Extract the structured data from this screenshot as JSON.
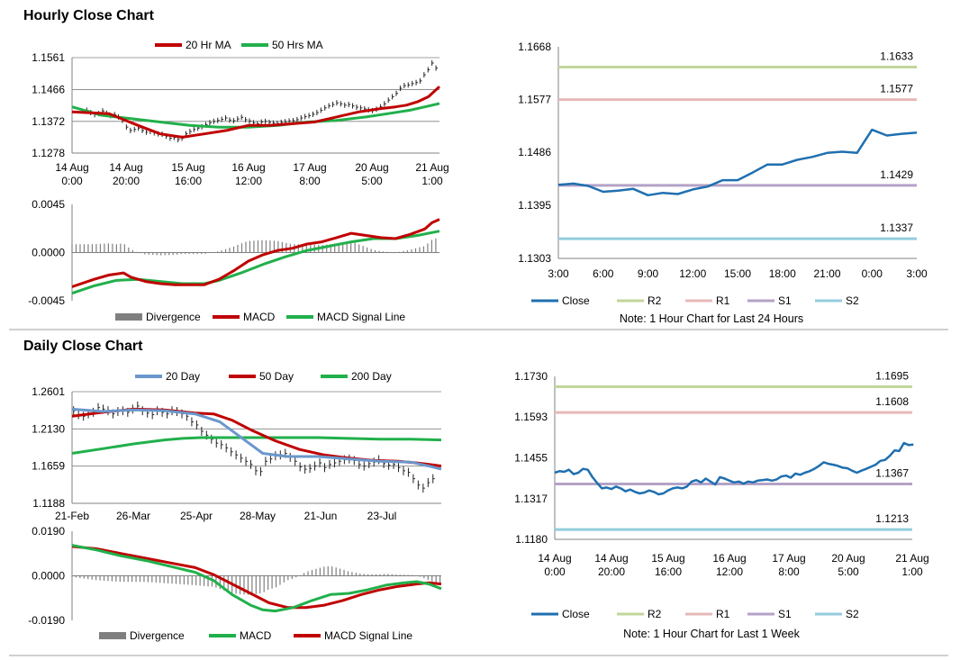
{
  "sections": {
    "hourly_title": "Hourly Close Chart",
    "daily_title": "Daily Close Chart"
  },
  "colors": {
    "close": "#1f6fb0",
    "ma_red": "#c00000",
    "ma_green": "#21b04b",
    "blue20": "#6a97cc",
    "R2": "#c3d69b",
    "R1": "#e6b9b8",
    "S1": "#b3a2c7",
    "S2": "#93cddd",
    "divergence": "#7f7f7f"
  },
  "chart_data": [
    {
      "id": "hourly_price",
      "type": "line",
      "title": "",
      "legend": [
        "20 Hr MA",
        "50 Hrs MA"
      ],
      "y_ticks": [
        "1.1561",
        "1.1466",
        "1.1372",
        "1.1278"
      ],
      "x_ticks": [
        [
          "14 Aug",
          "0:00"
        ],
        [
          "14 Aug",
          "20:00"
        ],
        [
          "15 Aug",
          "16:00"
        ],
        [
          "16 Aug",
          "12:00"
        ],
        [
          "17 Aug",
          "8:00"
        ],
        [
          "20 Aug",
          "5:00"
        ],
        [
          "21 Aug",
          "1:00"
        ]
      ],
      "ylim": [
        1.1278,
        1.1561
      ],
      "x_count": 100,
      "series": [
        {
          "name": "20 Hr MA",
          "x": [
            0,
            10,
            18,
            24,
            30,
            36,
            42,
            48,
            54,
            60,
            66,
            72,
            78,
            84,
            88,
            91,
            94,
            97,
            100
          ],
          "values": [
            1.14,
            1.1395,
            1.136,
            1.1335,
            1.1325,
            1.1335,
            1.1345,
            1.136,
            1.136,
            1.1365,
            1.137,
            1.1385,
            1.14,
            1.141,
            1.1415,
            1.142,
            1.143,
            1.1445,
            1.1475
          ]
        },
        {
          "name": "50 Hrs MA",
          "x": [
            0,
            8,
            16,
            24,
            32,
            40,
            48,
            56,
            64,
            72,
            80,
            86,
            92,
            96,
            100
          ],
          "values": [
            1.1415,
            1.139,
            1.138,
            1.137,
            1.136,
            1.1355,
            1.1355,
            1.136,
            1.137,
            1.1375,
            1.1385,
            1.1395,
            1.1405,
            1.1415,
            1.1425
          ]
        }
      ],
      "close_bars": [
        1.1405,
        1.1398,
        1.1392,
        1.1395,
        1.1403,
        1.1396,
        1.1389,
        1.1392,
        1.1385,
        1.1375,
        1.1355,
        1.1345,
        1.1348,
        1.1352,
        1.1345,
        1.134,
        1.1342,
        1.1338,
        1.1335,
        1.1334,
        1.1328,
        1.1322,
        1.1324,
        1.1318,
        1.1322,
        1.1335,
        1.1342,
        1.1348,
        1.1352,
        1.1356,
        1.1362,
        1.1368,
        1.1372,
        1.1375,
        1.1378,
        1.1382,
        1.1376,
        1.1374,
        1.1379,
        1.1384,
        1.1377,
        1.1373,
        1.1368,
        1.1365,
        1.137,
        1.1372,
        1.1369,
        1.1367,
        1.1366,
        1.1369,
        1.1371,
        1.1373,
        1.1374,
        1.1377,
        1.1382,
        1.1386,
        1.1389,
        1.1393,
        1.1398,
        1.1405,
        1.1412,
        1.1418,
        1.1422,
        1.1427,
        1.1424,
        1.142,
        1.1422,
        1.1418,
        1.1414,
        1.1412,
        1.1409,
        1.1406,
        1.1404,
        1.1408,
        1.1415,
        1.1424,
        1.1435,
        1.1445,
        1.1455,
        1.147,
        1.1478,
        1.148,
        1.1484,
        1.1487,
        1.1492,
        1.151,
        1.1525,
        1.1545,
        1.153
      ],
      "close_x_start": 4,
      "close_x_step": 1.08
    },
    {
      "id": "hourly_macd",
      "type": "line",
      "title": "",
      "legend": [
        "Divergence",
        "MACD",
        "MACD Signal Line"
      ],
      "y_ticks": [
        "0.0045",
        "0.0000",
        "-0.0045"
      ],
      "ylim": [
        -0.0045,
        0.0045
      ],
      "x_count": 100,
      "series": [
        {
          "name": "MACD",
          "x": [
            0,
            6,
            10,
            14,
            16,
            20,
            24,
            28,
            32,
            36,
            40,
            44,
            48,
            52,
            56,
            60,
            64,
            68,
            72,
            76,
            80,
            84,
            88,
            92,
            96,
            98,
            100
          ],
          "values": [
            -0.0032,
            -0.0025,
            -0.0021,
            -0.0019,
            -0.0023,
            -0.0027,
            -0.0029,
            -0.003,
            -0.003,
            -0.003,
            -0.0025,
            -0.0017,
            -0.0008,
            -0.0002,
            0.0002,
            0.0004,
            0.0008,
            0.001,
            0.0014,
            0.0018,
            0.0016,
            0.0014,
            0.0013,
            0.0017,
            0.0022,
            0.0028,
            0.0031
          ]
        },
        {
          "name": "MACD Signal Line",
          "x": [
            0,
            6,
            12,
            18,
            24,
            30,
            36,
            40,
            46,
            52,
            58,
            64,
            70,
            76,
            82,
            88,
            94,
            100
          ],
          "values": [
            -0.0038,
            -0.0031,
            -0.0026,
            -0.0025,
            -0.0027,
            -0.0029,
            -0.0029,
            -0.0026,
            -0.0019,
            -0.0011,
            -0.0004,
            0.0002,
            0.0006,
            0.001,
            0.0013,
            0.0013,
            0.0016,
            0.002
          ]
        }
      ]
    },
    {
      "id": "hourly_24h",
      "type": "line",
      "title": "",
      "y_ticks": [
        "1.1668",
        "1.1577",
        "1.1486",
        "1.1395",
        "1.1303"
      ],
      "x_ticks": [
        "3:00",
        "6:00",
        "9:00",
        "12:00",
        "15:00",
        "18:00",
        "21:00",
        "0:00",
        "3:00"
      ],
      "ylim": [
        1.1303,
        1.1668
      ],
      "x": [
        0,
        1,
        2,
        3,
        4,
        5,
        6,
        7,
        8,
        9,
        10,
        11,
        12,
        13,
        14,
        15,
        16,
        17,
        18,
        19,
        20,
        21,
        22,
        23,
        24
      ],
      "close": [
        1.143,
        1.1432,
        1.1428,
        1.1418,
        1.142,
        1.1423,
        1.1412,
        1.1416,
        1.1414,
        1.1422,
        1.1427,
        1.1438,
        1.1438,
        1.1451,
        1.1465,
        1.1465,
        1.1473,
        1.1478,
        1.1485,
        1.1487,
        1.1485,
        1.1525,
        1.1515,
        1.1518,
        1.152
      ],
      "levels": [
        {
          "name": "R2",
          "value": 1.1633,
          "label": "1.1633"
        },
        {
          "name": "R1",
          "value": 1.1577,
          "label": "1.1577"
        },
        {
          "name": "S1",
          "value": 1.1429,
          "label": "1.1429"
        },
        {
          "name": "S2",
          "value": 1.1337,
          "label": "1.1337"
        }
      ],
      "legend": [
        "Close",
        "R2",
        "R1",
        "S1",
        "S2"
      ],
      "note": "Note: 1 Hour Chart for Last 24 Hours"
    },
    {
      "id": "daily_price",
      "type": "line",
      "title": "",
      "legend": [
        "20 Day",
        "50 Day",
        "200 Day"
      ],
      "y_ticks": [
        "1.2601",
        "1.2130",
        "1.1659",
        "1.1188"
      ],
      "x_ticks": [
        "21-Feb",
        "26-Mar",
        "25-Apr",
        "28-May",
        "21-Jun",
        "23-Jul"
      ],
      "ylim": [
        1.1188,
        1.2601
      ],
      "x_count": 120,
      "series": [
        {
          "name": "20 Day",
          "x": [
            0,
            10,
            20,
            30,
            40,
            48,
            54,
            62,
            70,
            80,
            90,
            100,
            110,
            116,
            120
          ],
          "values": [
            1.238,
            1.235,
            1.237,
            1.236,
            1.232,
            1.222,
            1.205,
            1.182,
            1.178,
            1.178,
            1.175,
            1.172,
            1.171,
            1.166,
            1.162
          ]
        },
        {
          "name": "50 Day",
          "x": [
            0,
            10,
            20,
            30,
            40,
            46,
            52,
            58,
            66,
            74,
            82,
            90,
            98,
            106,
            112,
            116,
            120
          ],
          "values": [
            1.229,
            1.234,
            1.238,
            1.237,
            1.233,
            1.232,
            1.224,
            1.212,
            1.198,
            1.187,
            1.18,
            1.176,
            1.173,
            1.172,
            1.17,
            1.168,
            1.166
          ]
        },
        {
          "name": "200 Day",
          "x": [
            0,
            10,
            20,
            30,
            36,
            42,
            50,
            60,
            70,
            80,
            90,
            100,
            110,
            120
          ],
          "values": [
            1.182,
            1.188,
            1.194,
            1.199,
            1.201,
            1.202,
            1.202,
            1.202,
            1.202,
            1.202,
            1.201,
            1.2,
            1.2,
            1.199
          ]
        }
      ],
      "close_bars": [
        1.236,
        1.231,
        1.229,
        1.232,
        1.234,
        1.24,
        1.238,
        1.236,
        1.232,
        1.235,
        1.236,
        1.234,
        1.238,
        1.242,
        1.236,
        1.233,
        1.231,
        1.236,
        1.234,
        1.232,
        1.236,
        1.235,
        1.232,
        1.229,
        1.222,
        1.218,
        1.21,
        1.205,
        1.2,
        1.195,
        1.193,
        1.189,
        1.184,
        1.18,
        1.176,
        1.172,
        1.168,
        1.16,
        1.159,
        1.172,
        1.175,
        1.179,
        1.18,
        1.182,
        1.177,
        1.172,
        1.165,
        1.162,
        1.163,
        1.166,
        1.17,
        1.164,
        1.168,
        1.17,
        1.172,
        1.174,
        1.175,
        1.173,
        1.168,
        1.166,
        1.169,
        1.171,
        1.174,
        1.169,
        1.167,
        1.168,
        1.164,
        1.16,
        1.158,
        1.15,
        1.142,
        1.138,
        1.145,
        1.15
      ],
      "close_x_start": 0.5,
      "close_x_step": 1.6
    },
    {
      "id": "daily_macd",
      "type": "line",
      "title": "",
      "legend": [
        "Divergence",
        "MACD",
        "MACD Signal Line"
      ],
      "y_ticks": [
        "0.0190",
        "0.0000",
        "-0.0190"
      ],
      "ylim": [
        -0.019,
        0.019
      ],
      "x_count": 120,
      "series": [
        {
          "name": "MACD",
          "x": [
            0,
            8,
            16,
            24,
            32,
            40,
            46,
            52,
            58,
            62,
            66,
            72,
            78,
            84,
            90,
            96,
            102,
            108,
            112,
            116,
            120
          ],
          "values": [
            0.013,
            0.011,
            0.0085,
            0.0065,
            0.004,
            0.0015,
            -0.002,
            -0.008,
            -0.0125,
            -0.0145,
            -0.015,
            -0.0135,
            -0.0105,
            -0.008,
            -0.0075,
            -0.006,
            -0.004,
            -0.003,
            -0.0025,
            -0.0035,
            -0.0055
          ]
        },
        {
          "name": "MACD Signal Line",
          "x": [
            0,
            8,
            16,
            24,
            32,
            40,
            46,
            52,
            58,
            64,
            70,
            76,
            82,
            88,
            94,
            100,
            106,
            112,
            116,
            120
          ],
          "values": [
            0.0125,
            0.0115,
            0.0095,
            0.0075,
            0.0055,
            0.0035,
            0.0005,
            -0.0035,
            -0.0075,
            -0.0115,
            -0.0135,
            -0.0135,
            -0.0125,
            -0.0105,
            -0.008,
            -0.006,
            -0.0045,
            -0.0035,
            -0.003,
            -0.0035
          ]
        }
      ]
    },
    {
      "id": "weekly",
      "type": "line",
      "title": "",
      "y_ticks": [
        "1.1730",
        "1.1593",
        "1.1455",
        "1.1317",
        "1.1180"
      ],
      "x_ticks": [
        [
          "14 Aug",
          "0:00"
        ],
        [
          "14 Aug",
          "20:00"
        ],
        [
          "15 Aug",
          "16:00"
        ],
        [
          "16 Aug",
          "12:00"
        ],
        [
          "17 Aug",
          "8:00"
        ],
        [
          "20 Aug",
          "5:00"
        ],
        [
          "21 Aug",
          "1:00"
        ]
      ],
      "ylim": [
        1.118,
        1.173
      ],
      "x_count": 100,
      "close": [
        1.1405,
        1.141,
        1.1408,
        1.1415,
        1.14,
        1.1405,
        1.1418,
        1.1415,
        1.139,
        1.137,
        1.1352,
        1.1355,
        1.135,
        1.1358,
        1.1352,
        1.1342,
        1.1348,
        1.134,
        1.1335,
        1.1338,
        1.1345,
        1.134,
        1.1332,
        1.1335,
        1.1345,
        1.1352,
        1.1355,
        1.1352,
        1.1358,
        1.1375,
        1.138,
        1.1372,
        1.1385,
        1.1375,
        1.1365,
        1.139,
        1.1385,
        1.1378,
        1.1372,
        1.1375,
        1.1368,
        1.1375,
        1.1372,
        1.1378,
        1.138,
        1.1382,
        1.1378,
        1.1382,
        1.1392,
        1.1395,
        1.1388,
        1.1402,
        1.1398,
        1.1405,
        1.141,
        1.1418,
        1.1428,
        1.144,
        1.1435,
        1.1432,
        1.1428,
        1.1422,
        1.142,
        1.1412,
        1.1405,
        1.1412,
        1.1418,
        1.1425,
        1.1432,
        1.1445,
        1.1448,
        1.1462,
        1.148,
        1.1478,
        1.1505,
        1.1498,
        1.15
      ],
      "close_x_start": 0,
      "close_x_step": 1.32,
      "levels": [
        {
          "name": "R2",
          "value": 1.1695,
          "label": "1.1695"
        },
        {
          "name": "R1",
          "value": 1.1608,
          "label": "1.1608"
        },
        {
          "name": "S1",
          "value": 1.1367,
          "label": "1.1367"
        },
        {
          "name": "S2",
          "value": 1.1213,
          "label": "1.1213"
        }
      ],
      "legend": [
        "Close",
        "R2",
        "R1",
        "S1",
        "S2"
      ],
      "note": "Note: 1 Hour Chart for Last 1 Week"
    }
  ]
}
